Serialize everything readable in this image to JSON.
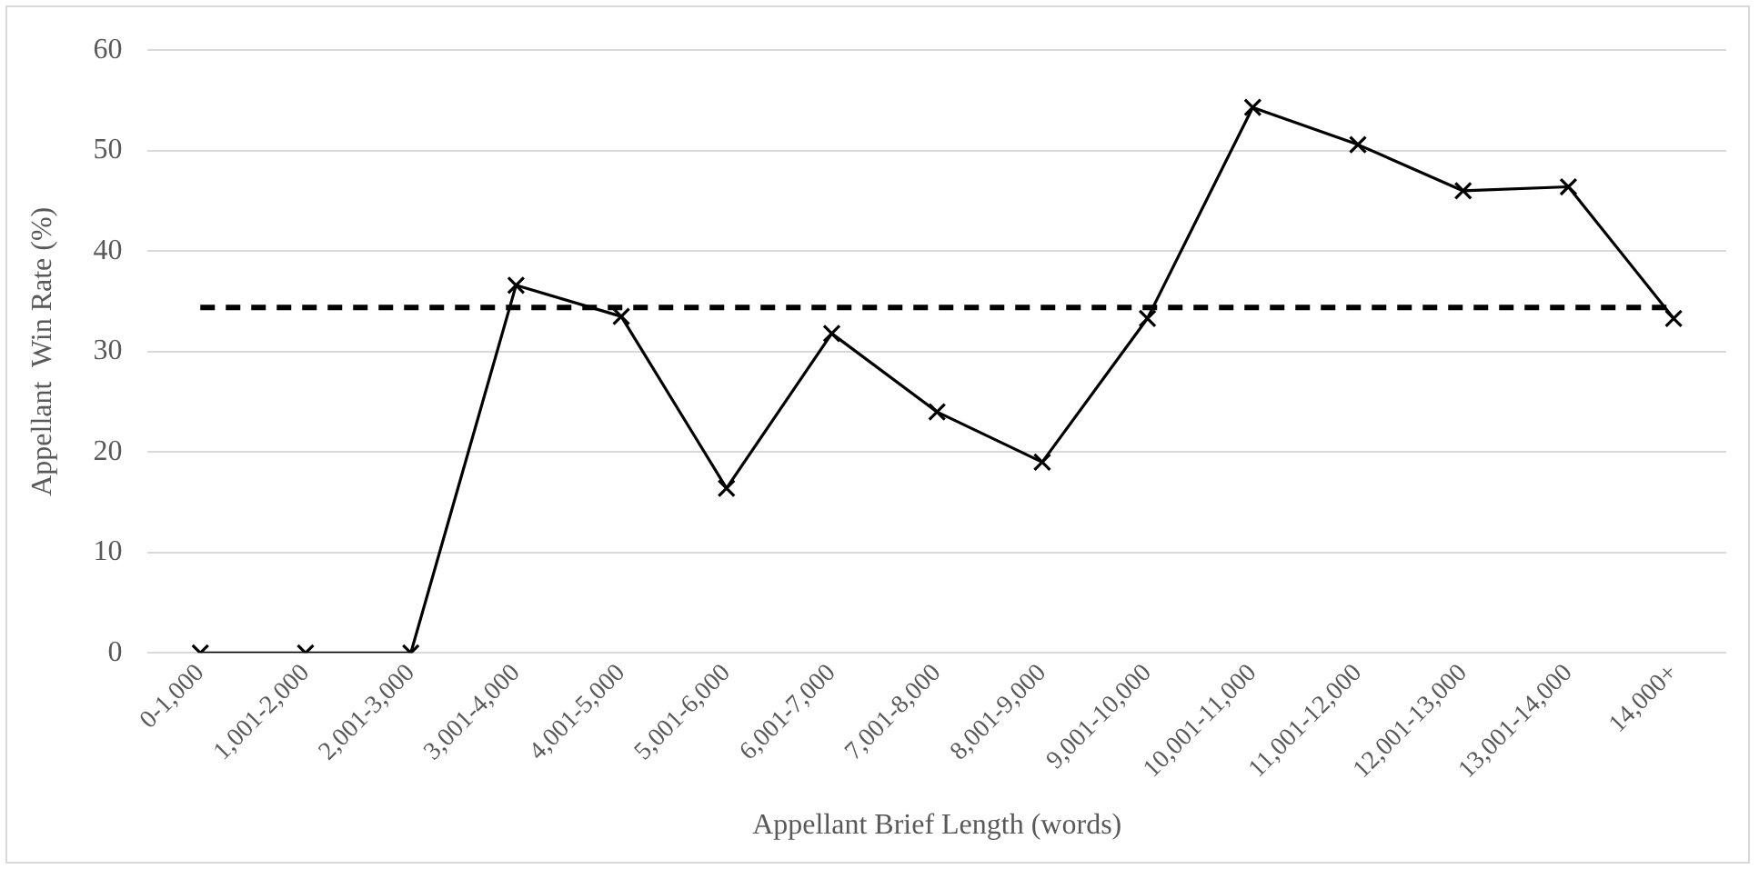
{
  "chart_data": {
    "type": "line",
    "xlabel": "Appellant Brief Length (words)",
    "ylabel": "Appellant  Win Rate (%)",
    "categories": [
      "0-1,000",
      "1,001-2,000",
      "2,001-3,000",
      "3,001-4,000",
      "4,001-5,000",
      "5,001-6,000",
      "6,001-7,000",
      "7,001-8,000",
      "8,001-9,000",
      "9,001-10,000",
      "10,001-11,000",
      "11,001-12,000",
      "12,001-13,000",
      "13,001-14,000",
      "14,000+"
    ],
    "series": [
      {
        "color": "#000000",
        "values": [
          0,
          0,
          0,
          36.6,
          33.5,
          16.4,
          31.8,
          24.0,
          19.0,
          33.3,
          54.3,
          50.6,
          46.0,
          46.4,
          33.3
        ]
      }
    ],
    "ylim": [
      0,
      60
    ],
    "yticks": [
      0,
      10,
      20,
      30,
      40,
      50,
      60
    ],
    "grid": "y",
    "marker": "cross",
    "line_style": "solid",
    "ref_lines": [
      {
        "axis": "y",
        "value": 34.4,
        "color": "#000000",
        "line_style": "dashed"
      }
    ],
    "legend": false
  }
}
